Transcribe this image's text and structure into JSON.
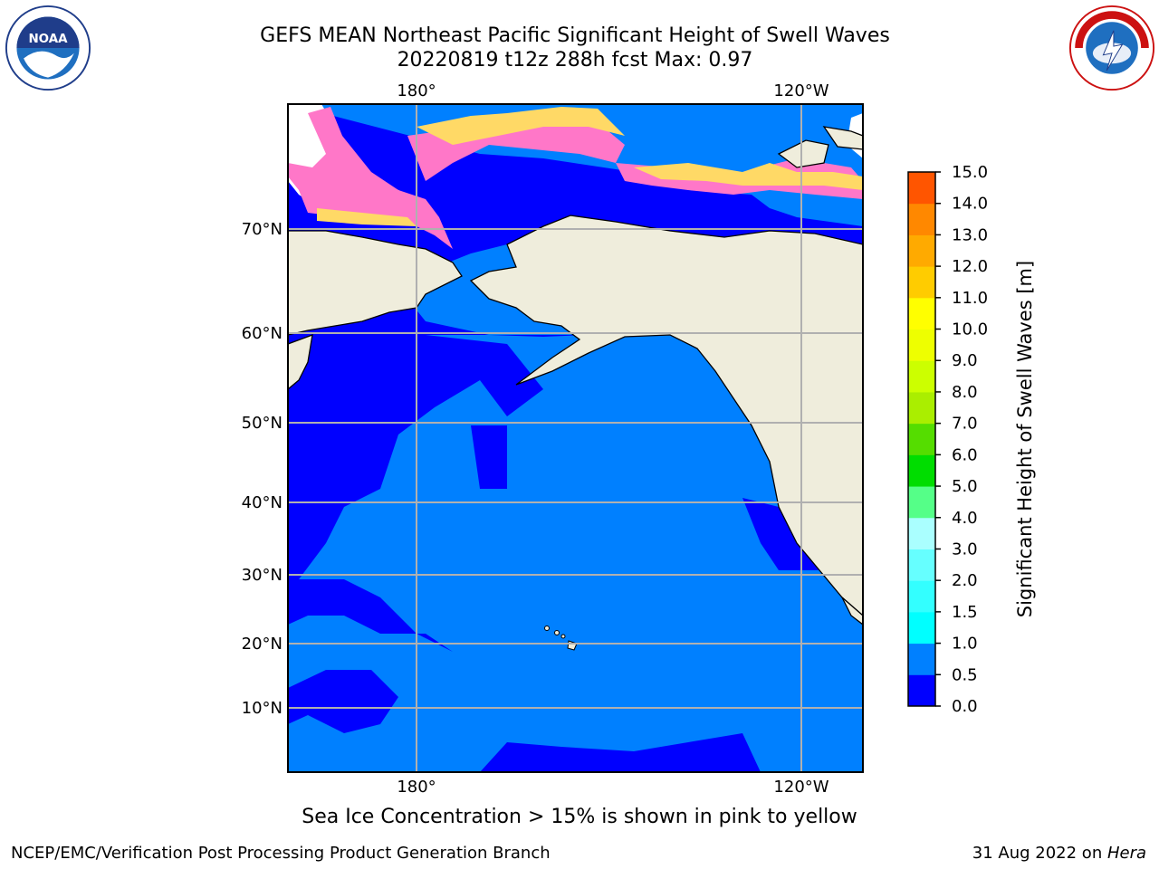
{
  "header": {
    "title": "GEFS MEAN Northeast Pacific Significant Height of Swell Waves",
    "subtitle": "20220819 t12z 288h fcst   Max: 0.97"
  },
  "logos": {
    "left": "noaa-logo",
    "left_text": "NOAA",
    "right": "nws-logo",
    "right_text": "NATIONAL WEATHER SERVICE"
  },
  "map": {
    "lon_labels_top": [
      "180°",
      "120°W"
    ],
    "lon_labels_bottom": [
      "180°",
      "120°W"
    ],
    "lat_labels": [
      "70°N",
      "60°N",
      "50°N",
      "40°N",
      "30°N",
      "20°N",
      "10°N"
    ],
    "colors": {
      "land": "#efeddc",
      "ocean_low": "#0000ff",
      "ocean_mid": "#0080ff",
      "ice_white": "#ffffff",
      "ice_pink": "#ff77c8",
      "ice_yellow": "#ffd966",
      "grid": "#b0b0b0"
    }
  },
  "colorbar": {
    "label": "Significant Height of Swell Waves [m]",
    "ticks": [
      "15.0",
      "14.0",
      "13.0",
      "12.0",
      "11.0",
      "10.0",
      "9.0",
      "8.0",
      "7.0",
      "6.0",
      "5.0",
      "4.0",
      "3.0",
      "2.0",
      "1.5",
      "1.0",
      "0.5",
      "0.0"
    ],
    "colors_bottom_to_top": [
      "#0000ff",
      "#0080ff",
      "#00ffff",
      "#33ffff",
      "#66ffff",
      "#aaffff",
      "#55ff88",
      "#00dd00",
      "#55dd00",
      "#aaee00",
      "#ccff00",
      "#eeff00",
      "#ffff00",
      "#ffcc00",
      "#ffaa00",
      "#ff8800",
      "#ff5500",
      "#ff2200",
      "#ff0000"
    ]
  },
  "caption": "Sea Ice Concentration > 15% is shown in pink to yellow",
  "footer": {
    "left": "NCEP/EMC/Verification Post Processing Product Generation Branch",
    "right_prefix": "31 Aug 2022 on ",
    "right_host": "Hera"
  }
}
